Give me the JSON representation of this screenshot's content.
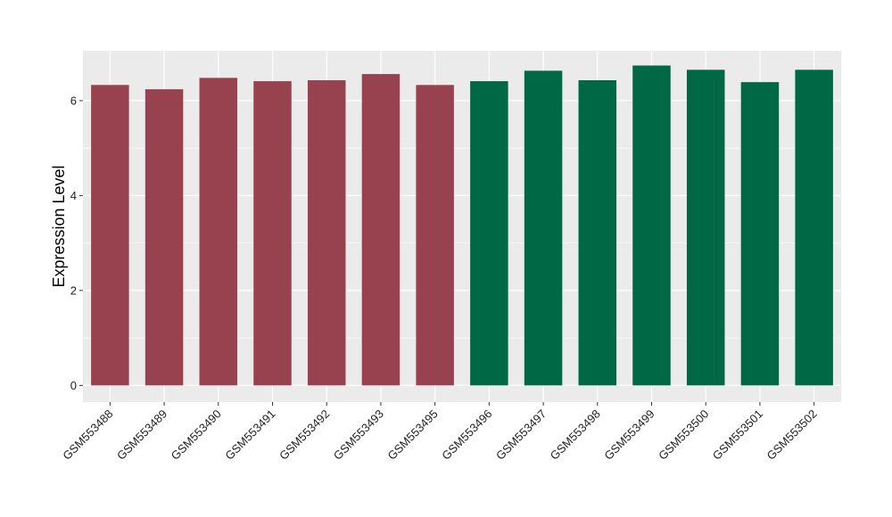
{
  "chart_data": {
    "type": "bar",
    "title": "",
    "xlabel": "",
    "ylabel": "Expression Level",
    "ylim": [
      -0.35,
      7.05
    ],
    "yticks": [
      0,
      2,
      4,
      6
    ],
    "grid": true,
    "categories": [
      "GSM553488",
      "GSM553489",
      "GSM553490",
      "GSM553491",
      "GSM553492",
      "GSM553493",
      "GSM553495",
      "GSM553496",
      "GSM553497",
      "GSM553498",
      "GSM553499",
      "GSM553500",
      "GSM553501",
      "GSM553502"
    ],
    "values": [
      6.33,
      6.24,
      6.48,
      6.41,
      6.43,
      6.56,
      6.33,
      6.41,
      6.63,
      6.43,
      6.74,
      6.65,
      6.39,
      6.65
    ],
    "group_colors": [
      "#99424f",
      "#99424f",
      "#99424f",
      "#99424f",
      "#99424f",
      "#99424f",
      "#99424f",
      "#006844",
      "#006844",
      "#006844",
      "#006844",
      "#006844",
      "#006844",
      "#006844"
    ],
    "panel_background": "#ebebeb",
    "grid_color": "#ffffff"
  }
}
